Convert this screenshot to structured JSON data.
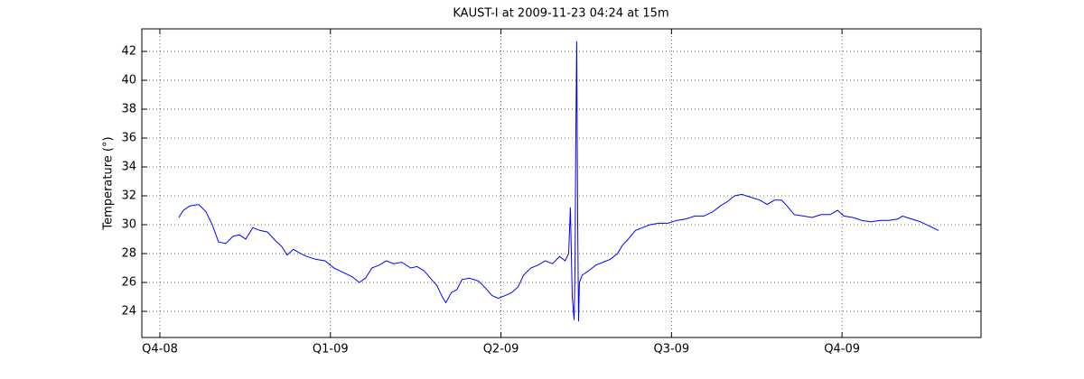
{
  "chart_data": {
    "type": "line",
    "title": "KAUST-I at 2009-11-23 04:24 at 15m",
    "y_label": "Temperature (°)",
    "xlim": [
      -0.106,
      4.815
    ],
    "xticks": [
      {
        "value": 0,
        "label": "Q4-08"
      },
      {
        "value": 1,
        "label": "Q1-09"
      },
      {
        "value": 2,
        "label": "Q2-09"
      },
      {
        "value": 3,
        "label": "Q3-09"
      },
      {
        "value": 4,
        "label": "Q4-09"
      }
    ],
    "ylim": [
      22.19,
      43.56
    ],
    "yticks": [
      24,
      26,
      28,
      30,
      32,
      34,
      36,
      38,
      40,
      42
    ],
    "grid": true,
    "series": [
      {
        "color": "#0000ff",
        "x": [
          0.111,
          0.138,
          0.175,
          0.228,
          0.27,
          0.307,
          0.344,
          0.386,
          0.429,
          0.466,
          0.503,
          0.545,
          0.587,
          0.63,
          0.677,
          0.714,
          0.746,
          0.783,
          0.825,
          0.862,
          0.915,
          0.968,
          1.021,
          1.074,
          1.127,
          1.169,
          1.206,
          1.243,
          1.286,
          1.328,
          1.37,
          1.418,
          1.471,
          1.508,
          1.55,
          1.593,
          1.624,
          1.656,
          1.677,
          1.709,
          1.741,
          1.772,
          1.815,
          1.868,
          1.91,
          1.947,
          1.984,
          2.026,
          2.063,
          2.101,
          2.132,
          2.175,
          2.217,
          2.259,
          2.302,
          2.344,
          2.376,
          2.397,
          2.407,
          2.418,
          2.429,
          2.434,
          2.439,
          2.444,
          2.45,
          2.455,
          2.46,
          2.476,
          2.513,
          2.556,
          2.598,
          2.64,
          2.683,
          2.714,
          2.746,
          2.788,
          2.831,
          2.873,
          2.926,
          2.979,
          3.032,
          3.085,
          3.138,
          3.19,
          3.243,
          3.286,
          3.328,
          3.37,
          3.413,
          3.466,
          3.519,
          3.561,
          3.603,
          3.646,
          3.677,
          3.72,
          3.772,
          3.825,
          3.878,
          3.931,
          3.974,
          4.011,
          4.063,
          4.116,
          4.169,
          4.222,
          4.275,
          4.328,
          4.354,
          4.407,
          4.46,
          4.513,
          4.566
        ],
        "values": [
          30.5,
          31.0,
          31.3,
          31.4,
          30.9,
          30.0,
          28.8,
          28.7,
          29.2,
          29.3,
          29.0,
          29.8,
          29.6,
          29.5,
          28.9,
          28.5,
          27.9,
          28.3,
          28.0,
          27.8,
          27.6,
          27.5,
          27.0,
          26.7,
          26.4,
          26.0,
          26.3,
          27.0,
          27.2,
          27.5,
          27.3,
          27.4,
          27.0,
          27.1,
          26.8,
          26.2,
          25.8,
          25.0,
          24.6,
          25.3,
          25.5,
          26.2,
          26.3,
          26.1,
          25.6,
          25.1,
          24.9,
          25.1,
          25.3,
          25.7,
          26.5,
          27.0,
          27.2,
          27.5,
          27.3,
          27.8,
          27.5,
          28.0,
          31.2,
          25.0,
          23.4,
          27.0,
          36.0,
          42.7,
          30.0,
          23.3,
          26.0,
          26.5,
          26.8,
          27.2,
          27.4,
          27.6,
          28.0,
          28.6,
          29.0,
          29.6,
          29.8,
          30.0,
          30.1,
          30.1,
          30.3,
          30.4,
          30.6,
          30.6,
          30.9,
          31.3,
          31.6,
          32.0,
          32.1,
          31.9,
          31.7,
          31.4,
          31.7,
          31.7,
          31.3,
          30.7,
          30.6,
          30.5,
          30.7,
          30.7,
          31.0,
          30.6,
          30.5,
          30.3,
          30.2,
          30.3,
          30.3,
          30.4,
          30.6,
          30.4,
          30.2,
          29.9,
          29.6
        ]
      }
    ]
  }
}
